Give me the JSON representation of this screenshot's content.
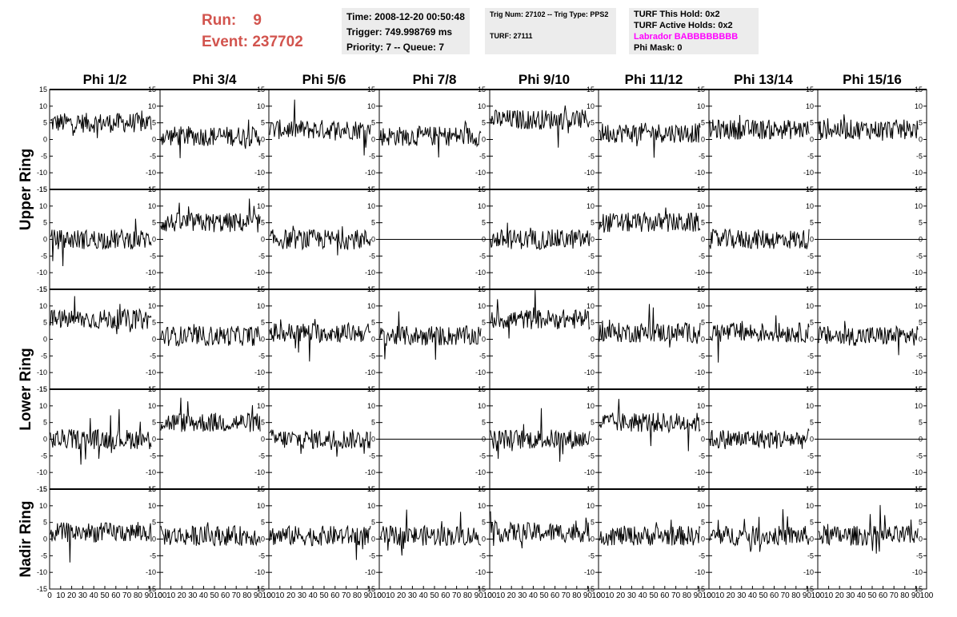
{
  "header": {
    "run_label": "Run:",
    "run_value": "9",
    "event_label": "Event:",
    "event_value": "237702"
  },
  "info_panel_1": {
    "time": "Time: 2008-12-20 00:50:48",
    "trigger": "Trigger: 749.998769 ms",
    "priority": "Priority: 7 -- Queue: 7"
  },
  "info_panel_2": {
    "trig": "Trig Num: 27102 -- Trig Type: PPS2",
    "turf": "TURF: 27111"
  },
  "info_panel_3": {
    "this_hold": "TURF This Hold: 0x2",
    "active_holds": "TURF Active Holds: 0x2",
    "labrador": "Labrador BABBBBBBBB",
    "phi_mask": "Phi Mask: 0",
    "labrador_color": "#ff00ff"
  },
  "columns": [
    "Phi 1/2",
    "Phi 3/4",
    "Phi 5/6",
    "Phi 7/8",
    "Phi 9/10",
    "Phi 11/12",
    "Phi 13/14",
    "Phi 15/16"
  ],
  "rings": [
    "Upper Ring",
    "Lower Ring",
    "Nadir Ring"
  ],
  "chart_data": {
    "type": "line",
    "description_rows": 5,
    "ylim": [
      -15,
      15
    ],
    "xlim": [
      0,
      100
    ],
    "yticks": [
      -15,
      -10,
      -5,
      0,
      5,
      10,
      15
    ],
    "xtick_labels": [
      "0",
      "10",
      "20",
      "30",
      "40",
      "50",
      "60",
      "70",
      "80",
      "90",
      "100"
    ],
    "baselines": [
      [
        5,
        1,
        3,
        1,
        6,
        2,
        3,
        3
      ],
      [
        0,
        5,
        0,
        0,
        0,
        5,
        0,
        0
      ],
      [
        6,
        1,
        2,
        1,
        6,
        2,
        2,
        1
      ],
      [
        0,
        5,
        0,
        0,
        0,
        5,
        0,
        0
      ],
      [
        2,
        1,
        1,
        1,
        2,
        1,
        1,
        1
      ]
    ],
    "flat": [
      [
        false,
        false,
        false,
        false,
        false,
        false,
        false,
        false
      ],
      [
        false,
        false,
        false,
        true,
        false,
        false,
        false,
        true
      ],
      [
        false,
        false,
        false,
        false,
        false,
        false,
        false,
        false
      ],
      [
        false,
        false,
        false,
        true,
        false,
        false,
        false,
        true
      ],
      [
        false,
        false,
        false,
        false,
        false,
        false,
        false,
        false
      ]
    ]
  }
}
